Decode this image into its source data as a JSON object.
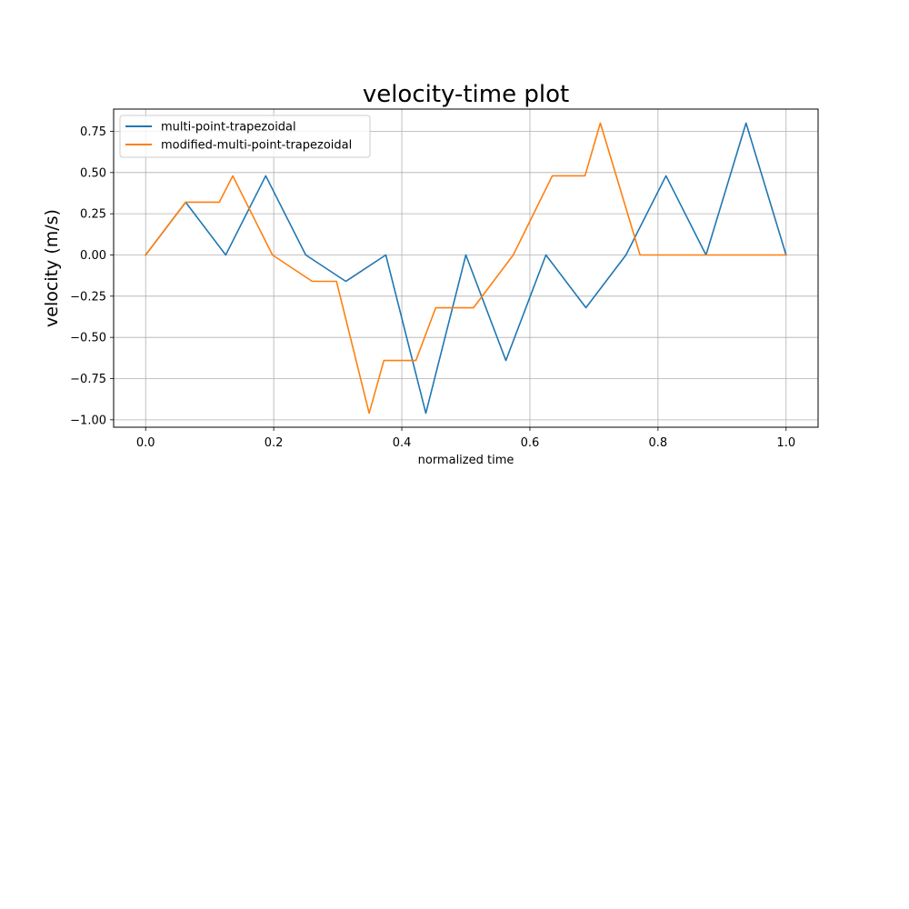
{
  "chart_data": {
    "type": "line",
    "title": "velocity-time plot",
    "xlabel": "normalized time",
    "ylabel": "velocity (m/s)",
    "xlim": [
      -0.05,
      1.05
    ],
    "ylim": [
      -1.045,
      0.885
    ],
    "grid": true,
    "legend_position": "top-left",
    "xticks": [
      0.0,
      0.2,
      0.4,
      0.6,
      0.8,
      1.0
    ],
    "xtick_labels": [
      "0.0",
      "0.2",
      "0.4",
      "0.6",
      "0.8",
      "1.0"
    ],
    "yticks": [
      0.75,
      0.5,
      0.25,
      0.0,
      -0.25,
      -0.5,
      -0.75,
      -1.0
    ],
    "ytick_labels": [
      "0.75",
      "0.50",
      "0.25",
      "0.00",
      "−0.25",
      "−0.50",
      "−0.75",
      "−1.00"
    ],
    "series": [
      {
        "name": "multi-point-trapezoidal",
        "color": "#1f77b4",
        "x": [
          0.0,
          0.0625,
          0.125,
          0.1875,
          0.25,
          0.3125,
          0.375,
          0.4375,
          0.5,
          0.5625,
          0.625,
          0.6875,
          0.75,
          0.8125,
          0.875,
          0.9375,
          1.0
        ],
        "y": [
          0.0,
          0.32,
          0.0,
          0.48,
          0.0,
          -0.16,
          0.0,
          -0.96,
          0.0,
          -0.64,
          0.0,
          -0.32,
          0.0,
          0.48,
          0.0,
          0.8,
          0.0
        ]
      },
      {
        "name": "modified-multi-point-trapezoidal",
        "color": "#ff7f0e",
        "x": [
          0.0,
          0.0625,
          0.115,
          0.136,
          0.198,
          0.26,
          0.298,
          0.349,
          0.372,
          0.422,
          0.453,
          0.512,
          0.574,
          0.635,
          0.686,
          0.71,
          0.772,
          1.0
        ],
        "y": [
          0.0,
          0.32,
          0.32,
          0.48,
          0.0,
          -0.16,
          -0.16,
          -0.96,
          -0.64,
          -0.64,
          -0.32,
          -0.32,
          0.0,
          0.48,
          0.48,
          0.8,
          0.0,
          0.0
        ]
      }
    ]
  }
}
